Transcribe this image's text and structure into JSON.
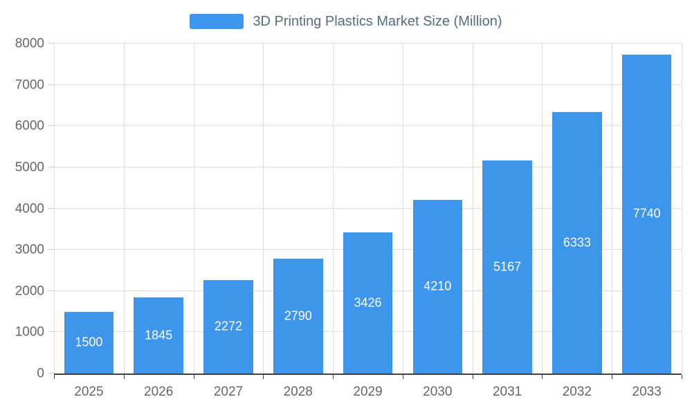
{
  "legend": {
    "title": "3D Printing Plastics Market Size (Million)"
  },
  "chart_data": {
    "type": "bar",
    "title": "3D Printing Plastics Market Size (Million)",
    "series_name": "3D Printing Plastics Market Size (Million)",
    "categories": [
      "2025",
      "2026",
      "2027",
      "2028",
      "2029",
      "2030",
      "2031",
      "2032",
      "2033"
    ],
    "values": [
      1500,
      1845,
      2272,
      2790,
      3426,
      4210,
      5167,
      6333,
      7740
    ],
    "xlabel": "",
    "ylabel": "",
    "ylim": [
      0,
      8000
    ],
    "ytick_step": 1000,
    "yticks": [
      0,
      1000,
      2000,
      3000,
      4000,
      5000,
      6000,
      7000,
      8000
    ],
    "grid": true,
    "legend_position": "top",
    "value_labels": "inside-center"
  },
  "colors": {
    "bar": "#3E96EC",
    "grid": "#DEDEDE",
    "axis_line": "#424242",
    "tick_text": "#666666",
    "title_text": "#546E7A",
    "bar_label_text": "#FFFFFF",
    "background": "#FFFFFF"
  }
}
